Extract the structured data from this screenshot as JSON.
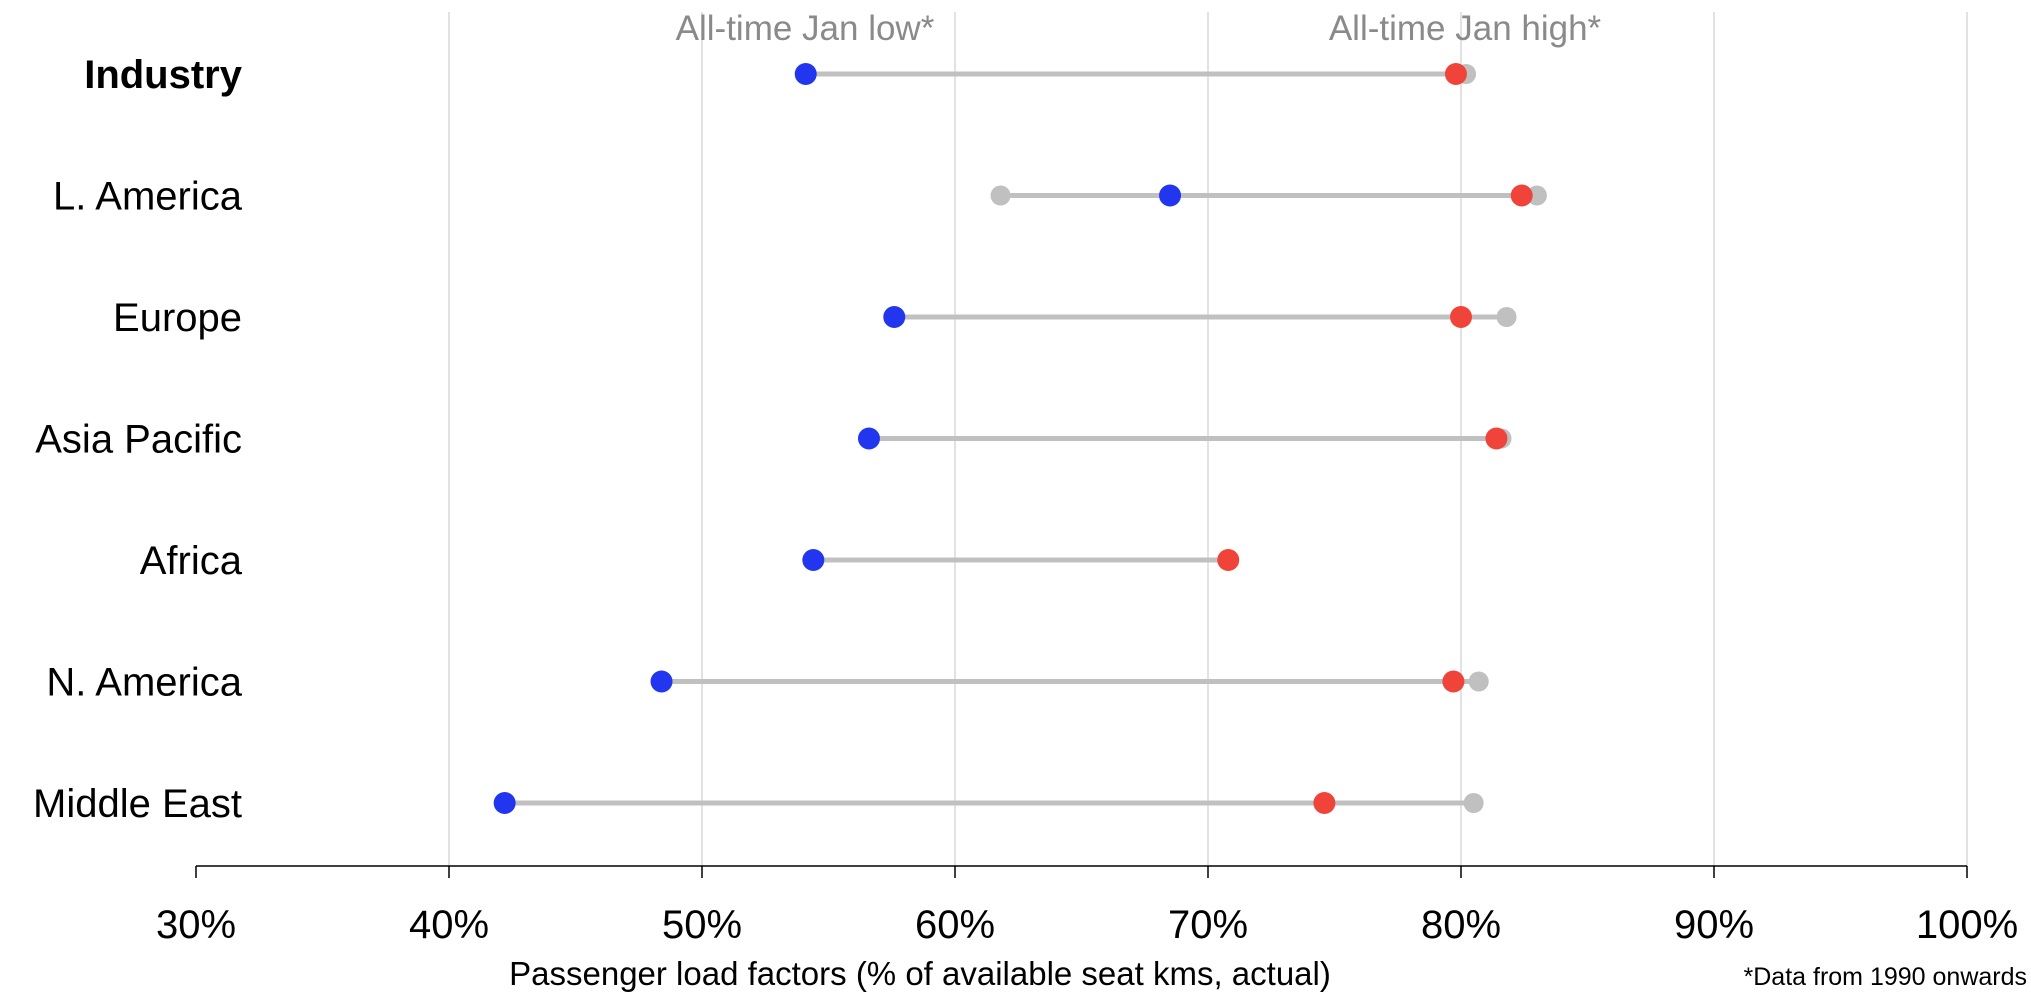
{
  "chart_data": {
    "type": "dumbbell",
    "xlabel": "Passenger load factors (% of available seat kms, actual)",
    "xlim": [
      30,
      100
    ],
    "x_ticks": [
      30,
      40,
      50,
      60,
      70,
      80,
      90,
      100
    ],
    "x_tick_labels": [
      "30%",
      "40%",
      "50%",
      "60%",
      "70%",
      "80%",
      "90%",
      "100%"
    ],
    "grid": true,
    "annotations": {
      "low_label": "All-time Jan low*",
      "high_label": "All-time Jan high*"
    },
    "footnote": "*Data from 1990 onwards",
    "colors": {
      "low_marker": "#2236f0",
      "high_marker": "#f0443a",
      "range": "#c0c0c0",
      "grid": "#d9d9d9",
      "annotation": "#8a8a8a"
    },
    "categories": [
      "Industry",
      "L. America",
      "Europe",
      "Asia Pacific",
      "Africa",
      "N. America",
      "Middle East"
    ],
    "bold_categories": [
      "Industry"
    ],
    "series": [
      {
        "values": [
          54.1,
          68.5,
          57.6,
          56.6,
          54.4,
          48.4,
          42.2
        ]
      },
      {
        "values": [
          79.8,
          82.4,
          80.0,
          81.4,
          70.8,
          79.7,
          74.6
        ]
      },
      {
        "values": [
          80.2,
          83.0,
          81.8,
          81.6,
          null,
          80.7,
          80.5
        ]
      },
      {
        "values": [
          null,
          61.8,
          null,
          null,
          null,
          null,
          null
        ]
      }
    ]
  }
}
